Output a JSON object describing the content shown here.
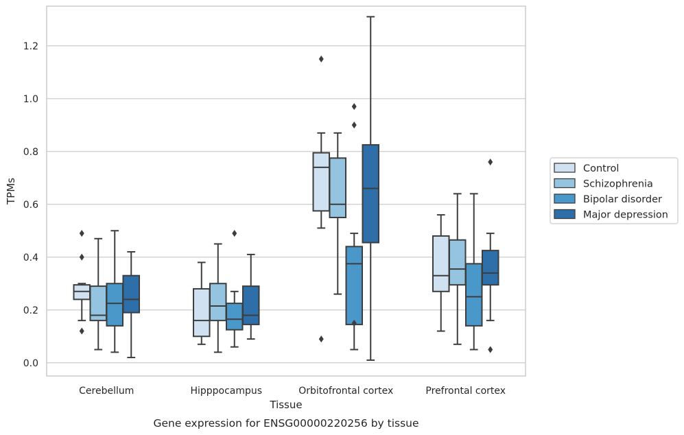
{
  "chart_data": {
    "type": "box",
    "caption": "Gene expression for ENSG00000220256 by tissue",
    "xlabel": "Tissue",
    "ylabel": "TPMs",
    "ylim": [
      -0.05,
      1.35
    ],
    "yticks": [
      "0.0",
      "0.2",
      "0.4",
      "0.6",
      "0.8",
      "1.0",
      "1.2"
    ],
    "ytick_values": [
      0.0,
      0.2,
      0.4,
      0.6,
      0.8,
      1.0,
      1.2
    ],
    "grid": "horizontal",
    "legend_position": "right",
    "categories": [
      "Cerebellum",
      "Hipppocampus",
      "Orbitofrontal cortex",
      "Prefrontal cortex"
    ],
    "series": [
      {
        "name": "Control",
        "color": "#d0e1f2",
        "boxes": [
          {
            "whislo": 0.16,
            "q1": 0.24,
            "med": 0.27,
            "q3": 0.295,
            "whishi": 0.3,
            "fliers": [
              0.12,
              0.4,
              0.49
            ]
          },
          {
            "whislo": 0.07,
            "q1": 0.1,
            "med": 0.16,
            "q3": 0.28,
            "whishi": 0.38,
            "fliers": []
          },
          {
            "whislo": 0.51,
            "q1": 0.575,
            "med": 0.74,
            "q3": 0.795,
            "whishi": 0.87,
            "fliers": [
              0.09,
              1.15
            ]
          },
          {
            "whislo": 0.12,
            "q1": 0.27,
            "med": 0.33,
            "q3": 0.48,
            "whishi": 0.56,
            "fliers": []
          }
        ]
      },
      {
        "name": "Schizophrenia",
        "color": "#94c4df",
        "boxes": [
          {
            "whislo": 0.05,
            "q1": 0.16,
            "med": 0.18,
            "q3": 0.29,
            "whishi": 0.47,
            "fliers": []
          },
          {
            "whislo": 0.04,
            "q1": 0.16,
            "med": 0.215,
            "q3": 0.3,
            "whishi": 0.45,
            "fliers": []
          },
          {
            "whislo": 0.26,
            "q1": 0.55,
            "med": 0.6,
            "q3": 0.775,
            "whishi": 0.87,
            "fliers": []
          },
          {
            "whislo": 0.07,
            "q1": 0.295,
            "med": 0.355,
            "q3": 0.465,
            "whishi": 0.64,
            "fliers": []
          }
        ]
      },
      {
        "name": "Bipolar disorder",
        "color": "#4a98c9",
        "boxes": [
          {
            "whislo": 0.04,
            "q1": 0.14,
            "med": 0.225,
            "q3": 0.3,
            "whishi": 0.5,
            "fliers": []
          },
          {
            "whislo": 0.06,
            "q1": 0.125,
            "med": 0.165,
            "q3": 0.225,
            "whishi": 0.27,
            "fliers": [
              0.49
            ]
          },
          {
            "whislo": 0.05,
            "q1": 0.145,
            "med": 0.375,
            "q3": 0.44,
            "whishi": 0.49,
            "fliers": [
              0.15,
              0.9,
              0.97
            ]
          },
          {
            "whislo": 0.05,
            "q1": 0.14,
            "med": 0.25,
            "q3": 0.375,
            "whishi": 0.64,
            "fliers": []
          }
        ]
      },
      {
        "name": "Major depression",
        "color": "#2e6fa9",
        "boxes": [
          {
            "whislo": 0.02,
            "q1": 0.19,
            "med": 0.24,
            "q3": 0.33,
            "whishi": 0.42,
            "fliers": []
          },
          {
            "whislo": 0.09,
            "q1": 0.145,
            "med": 0.18,
            "q3": 0.29,
            "whishi": 0.41,
            "fliers": []
          },
          {
            "whislo": 0.01,
            "q1": 0.455,
            "med": 0.66,
            "q3": 0.825,
            "whishi": 1.31,
            "fliers": []
          },
          {
            "whislo": 0.16,
            "q1": 0.295,
            "med": 0.34,
            "q3": 0.425,
            "whishi": 0.49,
            "fliers": [
              0.05,
              0.76
            ]
          }
        ]
      }
    ]
  }
}
